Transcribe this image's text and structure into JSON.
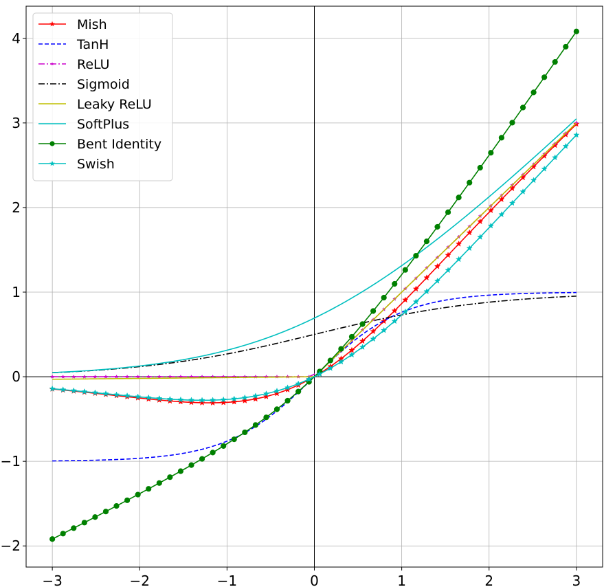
{
  "chart_data": {
    "type": "line",
    "title": "",
    "xlabel": "",
    "ylabel": "",
    "xlim": [
      -3.3,
      3.3
    ],
    "ylim": [
      -2.25,
      4.38
    ],
    "xticks": [
      -3,
      -2,
      -1,
      0,
      1,
      2,
      3
    ],
    "yticks": [
      -2,
      -1,
      0,
      1,
      2,
      3,
      4
    ],
    "xtick_labels": [
      "−3",
      "−2",
      "−1",
      "0",
      "1",
      "2",
      "3"
    ],
    "ytick_labels": [
      "−2",
      "−1",
      "0",
      "1",
      "2",
      "3",
      "4"
    ],
    "grid": true,
    "zero_axes": true,
    "legend_position": "top-left",
    "x_domain": [
      -3,
      3
    ],
    "series": [
      {
        "name": "Mish",
        "color": "#ff0000",
        "linestyle": "solid",
        "marker": "star",
        "function": "mish",
        "points": 50
      },
      {
        "name": "TanH",
        "color": "#0000ff",
        "linestyle": "dashed",
        "marker": "none",
        "function": "tanh",
        "points": 300
      },
      {
        "name": "ReLU",
        "color": "#cc00cc",
        "linestyle": "dashdot",
        "marker": "star-small",
        "function": "relu",
        "points": 50
      },
      {
        "name": "Sigmoid",
        "color": "#000000",
        "linestyle": "dashdot",
        "marker": "none",
        "function": "sigmoid",
        "points": 300
      },
      {
        "name": "Leaky ReLU",
        "color": "#bfbf00",
        "linestyle": "solid",
        "marker": "none",
        "function": "leaky_relu",
        "points": 300
      },
      {
        "name": "SoftPlus",
        "color": "#00bfbf",
        "linestyle": "solid",
        "marker": "none",
        "function": "softplus",
        "points": 300
      },
      {
        "name": "Bent Identity",
        "color": "#008000",
        "linestyle": "solid",
        "marker": "circle",
        "function": "bent_identity",
        "points": 50
      },
      {
        "name": "Swish",
        "color": "#00bfbf",
        "linestyle": "solid",
        "marker": "star",
        "function": "swish",
        "points": 50
      }
    ]
  }
}
